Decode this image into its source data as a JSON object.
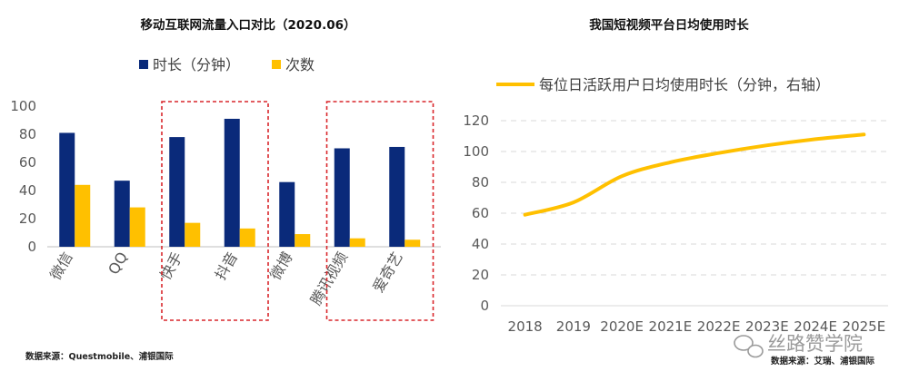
{
  "chart_data": [
    {
      "type": "bar",
      "title": "移动互联网流量入口对比（2020.06）",
      "categories": [
        "微信",
        "QQ",
        "快手",
        "抖音",
        "微博",
        "腾讯视频",
        "爱奇艺"
      ],
      "series": [
        {
          "name": "时长（分钟）",
          "color": "#0A2A7A",
          "values": [
            81,
            47,
            78,
            91,
            46,
            70,
            71
          ]
        },
        {
          "name": "次数",
          "color": "#FFC000",
          "values": [
            44,
            28,
            17,
            13,
            9,
            6,
            5
          ]
        }
      ],
      "ylim": [
        0,
        100
      ],
      "yticks": [
        0,
        20,
        40,
        60,
        80,
        100
      ],
      "legend": "top-center",
      "highlight_groups": [
        [
          "快手",
          "抖音"
        ],
        [
          "腾讯视频",
          "爱奇艺"
        ]
      ],
      "highlight_color": "#D9262B",
      "source": "数据来源：Questmobile、浦银国际"
    },
    {
      "type": "line",
      "title": "我国短视频平台日均使用时长",
      "x": [
        "2018",
        "2019",
        "2020E",
        "2021E",
        "2022E",
        "2023E",
        "2024E",
        "2025E"
      ],
      "series": [
        {
          "name": "每位日活跃用户日均使用时长（分钟，右轴）",
          "color": "#FFC000",
          "values": [
            59,
            67,
            84,
            93,
            99,
            104,
            108,
            111
          ]
        }
      ],
      "ylim": [
        0,
        120
      ],
      "yticks": [
        0,
        20,
        40,
        60,
        80,
        100,
        120
      ],
      "grid": true,
      "legend": "top",
      "source": "数据来源：艾瑞、浦银国际"
    }
  ],
  "watermark": "丝路赞学院"
}
